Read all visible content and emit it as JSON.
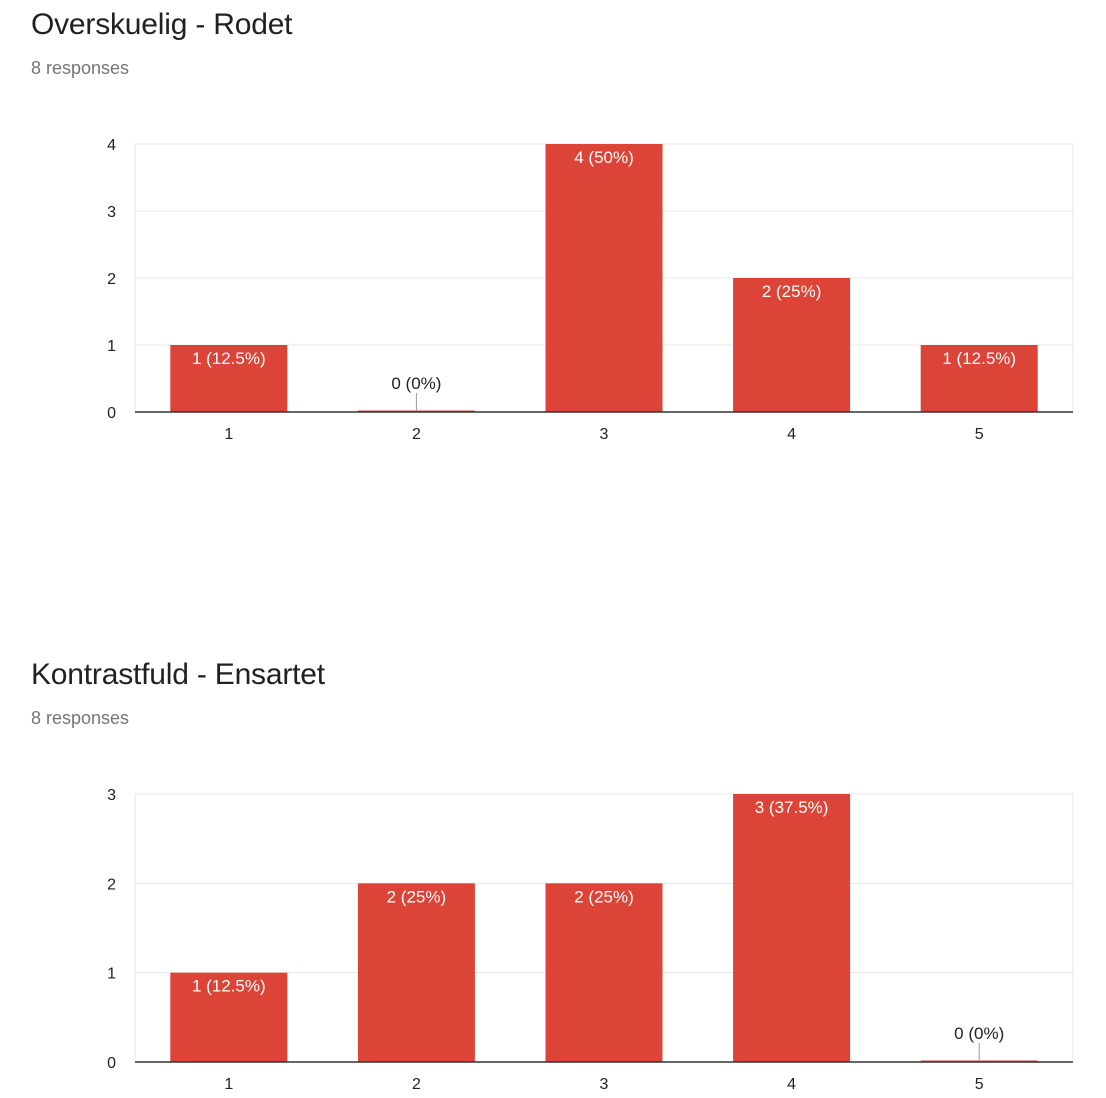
{
  "charts": [
    {
      "title": "Overskuelig - Rodet",
      "responses": "8 responses",
      "chart_data": {
        "type": "bar",
        "categories": [
          "1",
          "2",
          "3",
          "4",
          "5"
        ],
        "values": [
          1,
          0,
          4,
          2,
          1
        ],
        "data_labels": [
          "1 (12.5%)",
          "0 (0%)",
          "4 (50%)",
          "2 (25%)",
          "1 (12.5%)"
        ],
        "yticks": [
          "0",
          "1",
          "2",
          "3",
          "4"
        ],
        "ylim": [
          0,
          4
        ],
        "grid": true,
        "legend": "none",
        "bar_color": "#db4437"
      }
    },
    {
      "title": "Kontrastfuld - Ensartet",
      "responses": "8 responses",
      "chart_data": {
        "type": "bar",
        "categories": [
          "1",
          "2",
          "3",
          "4",
          "5"
        ],
        "values": [
          1,
          2,
          2,
          3,
          0
        ],
        "data_labels": [
          "1 (12.5%)",
          "2 (25%)",
          "2 (25%)",
          "3 (37.5%)",
          "0 (0%)"
        ],
        "yticks": [
          "0",
          "1",
          "2",
          "3"
        ],
        "ylim": [
          0,
          3
        ],
        "grid": true,
        "legend": "none",
        "bar_color": "#db4437"
      }
    }
  ]
}
